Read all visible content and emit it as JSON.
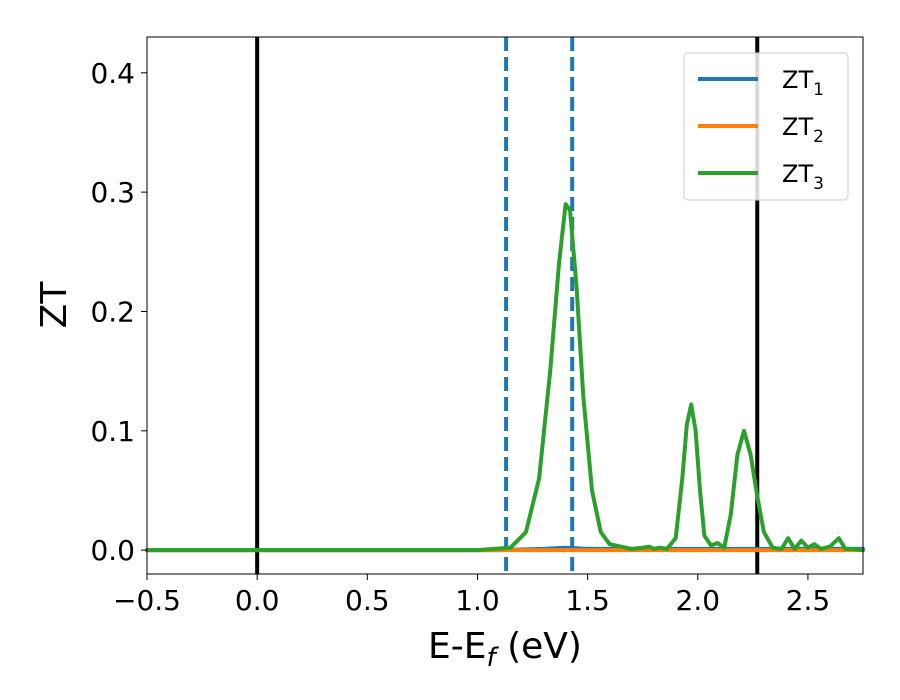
{
  "chart_data": {
    "type": "line",
    "title": "",
    "xlabel": "E-E",
    "xlabel_sub": "f",
    "xlabel_unit": " (eV)",
    "ylabel": "ZT",
    "xlim": [
      -0.5,
      2.75
    ],
    "ylim": [
      -0.02,
      0.43
    ],
    "x_ticks": [
      -0.5,
      0.0,
      0.5,
      1.0,
      1.5,
      2.0,
      2.5
    ],
    "x_tick_labels": [
      "−0.5",
      "0.0",
      "0.5",
      "1.0",
      "1.5",
      "2.0",
      "2.5"
    ],
    "y_ticks": [
      0.0,
      0.1,
      0.2,
      0.3,
      0.4
    ],
    "y_tick_labels": [
      "0.0",
      "0.1",
      "0.2",
      "0.3",
      "0.4"
    ],
    "grid": false,
    "legend_position": "top-right",
    "vlines": [
      {
        "x": 0.0,
        "style": "solid",
        "color": "#000000"
      },
      {
        "x": 2.27,
        "style": "solid",
        "color": "#000000"
      },
      {
        "x": 1.13,
        "style": "dashed",
        "color": "#1f77b4"
      },
      {
        "x": 1.43,
        "style": "dashed",
        "color": "#1f77b4"
      }
    ],
    "series": [
      {
        "name": "ZT",
        "name_sub": "1",
        "color": "#1f77b4",
        "x": [
          -0.5,
          1.1,
          1.3,
          1.4,
          1.5,
          1.7,
          2.0,
          2.3,
          2.75
        ],
        "y": [
          0.0,
          0.0,
          0.001,
          0.002,
          0.001,
          0.001,
          0.001,
          0.001,
          0.001
        ]
      },
      {
        "name": "ZT",
        "name_sub": "2",
        "color": "#ff7f0e",
        "x": [
          -0.5,
          2.75
        ],
        "y": [
          0.0,
          0.0
        ]
      },
      {
        "name": "ZT",
        "name_sub": "3",
        "color": "#2ca02c",
        "x": [
          -0.5,
          1.0,
          1.15,
          1.22,
          1.28,
          1.33,
          1.37,
          1.4,
          1.42,
          1.45,
          1.48,
          1.52,
          1.56,
          1.6,
          1.65,
          1.7,
          1.75,
          1.78,
          1.8,
          1.83,
          1.86,
          1.9,
          1.93,
          1.95,
          1.97,
          1.99,
          2.01,
          2.03,
          2.06,
          2.09,
          2.12,
          2.15,
          2.18,
          2.21,
          2.24,
          2.27,
          2.3,
          2.34,
          2.38,
          2.41,
          2.44,
          2.47,
          2.5,
          2.53,
          2.56,
          2.6,
          2.64,
          2.67,
          2.7,
          2.75
        ],
        "y": [
          0.0,
          0.0,
          0.002,
          0.015,
          0.06,
          0.15,
          0.24,
          0.29,
          0.285,
          0.22,
          0.13,
          0.05,
          0.015,
          0.005,
          0.003,
          0.001,
          0.002,
          0.003,
          0.001,
          0.002,
          0.001,
          0.01,
          0.06,
          0.105,
          0.122,
          0.1,
          0.05,
          0.012,
          0.004,
          0.006,
          0.002,
          0.03,
          0.08,
          0.1,
          0.08,
          0.045,
          0.015,
          0.002,
          0.001,
          0.01,
          0.001,
          0.008,
          0.002,
          0.005,
          0.001,
          0.003,
          0.01,
          0.001,
          0.001,
          0.0
        ]
      }
    ]
  }
}
